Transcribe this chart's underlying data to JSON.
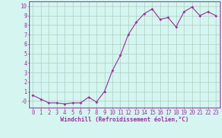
{
  "x": [
    0,
    1,
    2,
    3,
    4,
    5,
    6,
    7,
    8,
    9,
    10,
    11,
    12,
    13,
    14,
    15,
    16,
    17,
    18,
    19,
    20,
    21,
    22,
    23
  ],
  "y": [
    0.6,
    0.2,
    -0.2,
    -0.2,
    -0.3,
    -0.2,
    -0.2,
    0.4,
    -0.1,
    1.0,
    3.2,
    4.8,
    7.0,
    8.3,
    9.2,
    9.7,
    8.6,
    8.8,
    7.8,
    9.4,
    9.9,
    9.0,
    9.4,
    9.0
  ],
  "line_color": "#993399",
  "marker": "D",
  "marker_size": 1.8,
  "bg_color": "#d4f5f0",
  "grid_color": "#aaccbb",
  "xlabel": "Windchill (Refroidissement éolien,°C)",
  "xlim": [
    -0.5,
    23.5
  ],
  "ylim": [
    -0.7,
    10.5
  ],
  "yticks": [
    0,
    1,
    2,
    3,
    4,
    5,
    6,
    7,
    8,
    9,
    10
  ],
  "ytick_labels": [
    "-0",
    "1",
    "2",
    "3",
    "4",
    "5",
    "6",
    "7",
    "8",
    "9",
    "10"
  ],
  "xticks": [
    0,
    1,
    2,
    3,
    4,
    5,
    6,
    7,
    8,
    9,
    10,
    11,
    12,
    13,
    14,
    15,
    16,
    17,
    18,
    19,
    20,
    21,
    22,
    23
  ],
  "axis_fontsize": 6,
  "tick_fontsize": 5.5,
  "line_width": 0.9,
  "border_color": "#993399",
  "tick_color": "#993399",
  "label_color": "#993399"
}
